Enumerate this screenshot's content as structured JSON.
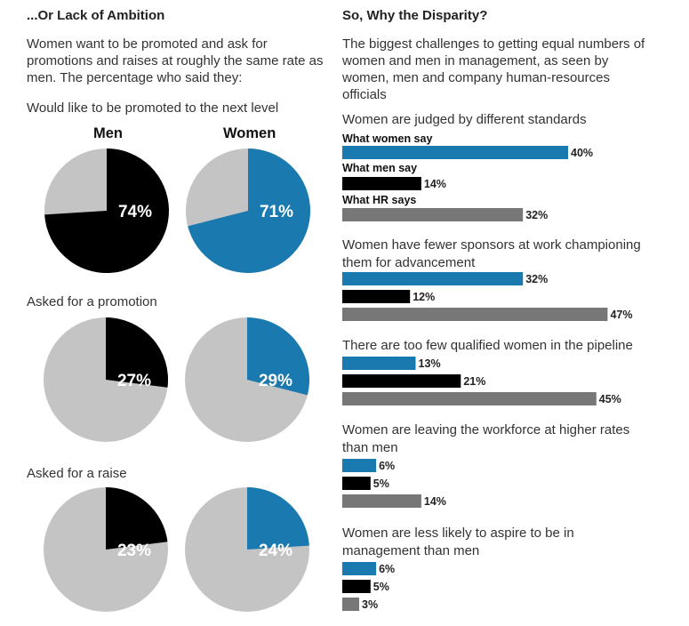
{
  "left": {
    "title": "...Or Lack of Ambition",
    "intro": [
      "Women want to be promoted and ask for",
      "promotions and raises at roughly the same rate as",
      "men. The percentage who said they:"
    ],
    "col_men": "Men",
    "col_women": "Women"
  },
  "right": {
    "title": "So, Why the Disparity?",
    "intro": [
      "The biggest challenges to getting equal numbers of",
      "women and men in management, as seen by",
      "women, men and company human-resources",
      "officials"
    ],
    "series_labels": [
      "What women say",
      "What men say",
      "What HR says"
    ]
  },
  "colors": {
    "men": "#000000",
    "women": "#1a7ab0",
    "hr": "#777777",
    "rest": "#c4c4c4"
  },
  "chart_data": [
    {
      "type": "pie",
      "title": "Would like to be promoted to the next level",
      "series": [
        {
          "name": "Men",
          "value": 74,
          "label": "74%"
        },
        {
          "name": "Women",
          "value": 71,
          "label": "71%"
        }
      ]
    },
    {
      "type": "pie",
      "title": "Asked for a promotion",
      "series": [
        {
          "name": "Men",
          "value": 27,
          "label": "27%"
        },
        {
          "name": "Women",
          "value": 29,
          "label": "29%"
        }
      ]
    },
    {
      "type": "pie",
      "title": "Asked for a raise",
      "series": [
        {
          "name": "Men",
          "value": 23,
          "label": "23%"
        },
        {
          "name": "Women",
          "value": 24,
          "label": "24%"
        }
      ]
    },
    {
      "type": "bar",
      "orientation": "horizontal",
      "categories": [
        "Women are judged by different standards",
        "Women have fewer sponsors at work championing them for advancement",
        "There are too few qualified women in the pipeline",
        "Women are leaving the workforce at higher rates than men",
        "Women are less likely to aspire to be in management than men"
      ],
      "category_lines": [
        [
          "Women are judged by different standards"
        ],
        [
          "Women have fewer sponsors at work championing",
          "them for advancement"
        ],
        [
          "There are too few qualified women in the pipeline"
        ],
        [
          "Women are leaving the workforce at higher rates",
          "than men"
        ],
        [
          "Women are less likely to aspire to be in",
          "management than men"
        ]
      ],
      "series": [
        {
          "name": "What women say",
          "values": [
            40,
            32,
            13,
            6,
            6
          ],
          "labels": [
            "40%",
            "32%",
            "13%",
            "6%",
            "6%"
          ]
        },
        {
          "name": "What men say",
          "values": [
            14,
            12,
            21,
            5,
            5
          ],
          "labels": [
            "14%",
            "12%",
            "21%",
            "5%",
            "5%"
          ]
        },
        {
          "name": "What HR says",
          "values": [
            32,
            47,
            45,
            14,
            3
          ],
          "labels": [
            "32%",
            "47%",
            "45%",
            "14%",
            "3%"
          ]
        }
      ]
    }
  ]
}
